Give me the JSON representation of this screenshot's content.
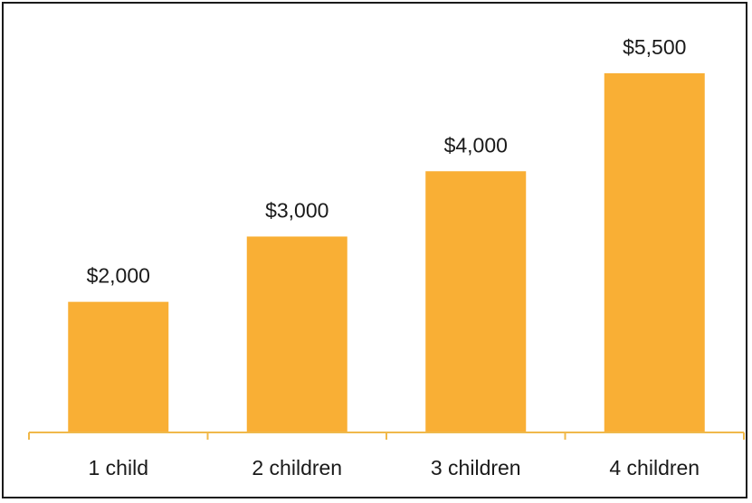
{
  "chart_data": {
    "type": "bar",
    "categories": [
      "1 child",
      "2 children",
      "3 children",
      "4 children"
    ],
    "values": [
      2000,
      3000,
      4000,
      5500
    ],
    "value_labels": [
      "$2,000",
      "$3,000",
      "$4,000",
      "$5,500"
    ],
    "title": "",
    "xlabel": "",
    "ylabel": "",
    "ylim": [
      0,
      5500
    ],
    "grid": false,
    "legend": "none",
    "colors": {
      "bar": "#F9AF35",
      "axis": "#F0B84A",
      "border": "#1a1a1a",
      "text": "#1a1a1a"
    }
  }
}
